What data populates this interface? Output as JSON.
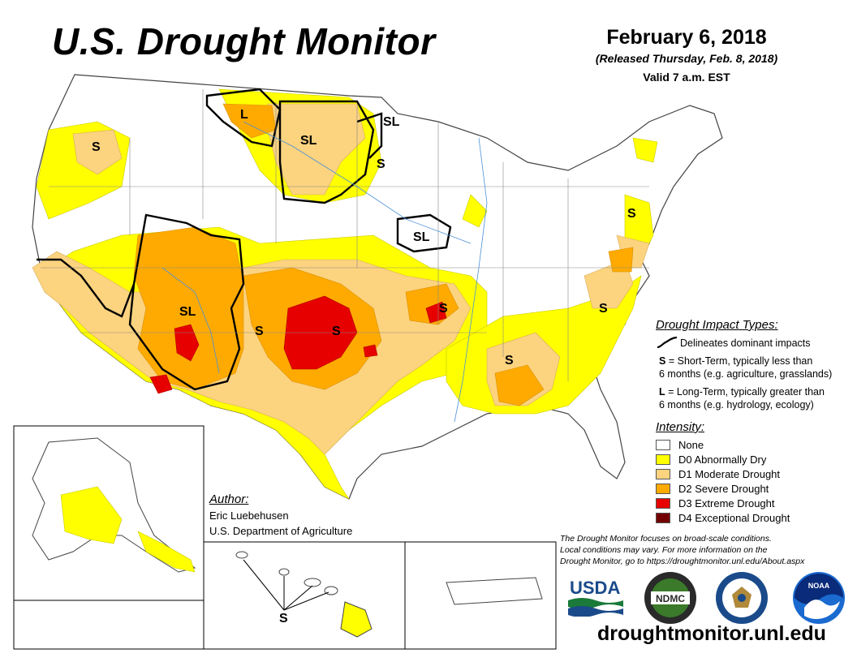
{
  "title": "U.S. Drought Monitor",
  "date": "February 6, 2018",
  "released": "(Released Thursday, Feb. 8, 2018)",
  "valid": "Valid 7 a.m. EST",
  "impact_types": {
    "title": "Drought Impact Types:",
    "delineates": "Delineates dominant impacts",
    "short_term_key": "S",
    "short_term_text": "= Short-Term, typically less than",
    "short_term_text2": "6 months (e.g. agriculture, grasslands)",
    "long_term_key": "L",
    "long_term_text": "= Long-Term, typically greater than",
    "long_term_text2": "6 months (e.g. hydrology, ecology)"
  },
  "intensity": {
    "title": "Intensity:",
    "items": [
      {
        "label": "None",
        "color": "#ffffff"
      },
      {
        "label": "D0 Abnormally Dry",
        "color": "#ffff00"
      },
      {
        "label": "D1 Moderate Drought",
        "color": "#fcd37f"
      },
      {
        "label": "D2 Severe Drought",
        "color": "#ffaa00"
      },
      {
        "label": "D3 Extreme Drought",
        "color": "#e60000"
      },
      {
        "label": "D4 Exceptional Drought",
        "color": "#730000"
      }
    ]
  },
  "map_labels": {
    "s": "S",
    "sl": "SL",
    "l": "L"
  },
  "author": {
    "title": "Author:",
    "name": "Eric Luebehusen",
    "org": "U.S. Department of Agriculture"
  },
  "note": {
    "line1": "The Drought Monitor focuses on broad-scale conditions.",
    "line2": "Local conditions may vary. For more information on the",
    "line3": "Drought Monitor, go to https://droughtmonitor.unl.edu/About.aspx"
  },
  "logos": {
    "usda": "USDA",
    "ndmc": "NDMC",
    "noaa": "NOAA"
  },
  "url": "droughtmonitor.unl.edu"
}
